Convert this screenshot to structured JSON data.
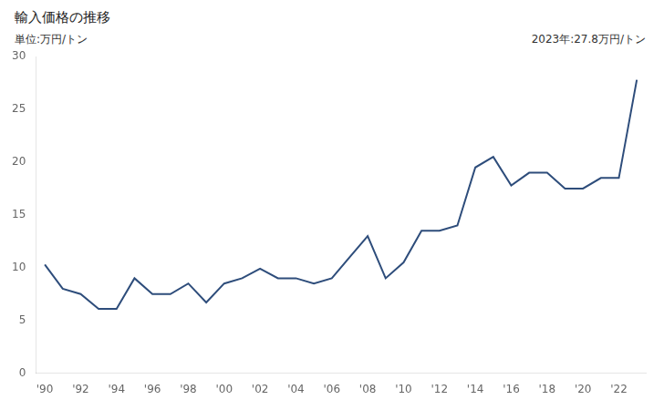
{
  "chart_data": {
    "type": "line",
    "title": "輸入価格の推移",
    "ylabel": "単位:万円/トン",
    "annotation": "2023年:27.8万円/トン",
    "color": "#2e4d7b",
    "x": [
      1990,
      1991,
      1992,
      1993,
      1994,
      1995,
      1996,
      1997,
      1998,
      1999,
      2000,
      2001,
      2002,
      2003,
      2004,
      2005,
      2006,
      2007,
      2008,
      2009,
      2010,
      2011,
      2012,
      2013,
      2014,
      2015,
      2016,
      2017,
      2018,
      2019,
      2020,
      2021,
      2022,
      2023
    ],
    "values": [
      10.3,
      8.0,
      7.5,
      6.1,
      6.1,
      9.0,
      7.5,
      7.5,
      8.5,
      6.7,
      8.5,
      9.0,
      9.9,
      9.0,
      9.0,
      8.5,
      9.0,
      11.0,
      13.0,
      9.0,
      10.5,
      13.5,
      13.5,
      14.0,
      19.5,
      20.5,
      17.8,
      19.0,
      19.0,
      17.5,
      17.5,
      18.5,
      18.5,
      27.8
    ],
    "xlim": [
      1989.5,
      2023.5
    ],
    "xticks": [
      {
        "value": 1990,
        "label": "'90"
      },
      {
        "value": 1992,
        "label": "'92"
      },
      {
        "value": 1994,
        "label": "'94"
      },
      {
        "value": 1996,
        "label": "'96"
      },
      {
        "value": 1998,
        "label": "'98"
      },
      {
        "value": 2000,
        "label": "'00"
      },
      {
        "value": 2002,
        "label": "'02"
      },
      {
        "value": 2004,
        "label": "'04"
      },
      {
        "value": 2006,
        "label": "'06"
      },
      {
        "value": 2008,
        "label": "'08"
      },
      {
        "value": 2010,
        "label": "'10"
      },
      {
        "value": 2012,
        "label": "'12"
      },
      {
        "value": 2014,
        "label": "'14"
      },
      {
        "value": 2016,
        "label": "'16"
      },
      {
        "value": 2018,
        "label": "'18"
      },
      {
        "value": 2020,
        "label": "'20"
      },
      {
        "value": 2022,
        "label": "'22"
      }
    ],
    "ylim": [
      0,
      30
    ],
    "yticks": [
      0,
      5,
      10,
      15,
      20,
      25,
      30
    ],
    "grid": false
  }
}
